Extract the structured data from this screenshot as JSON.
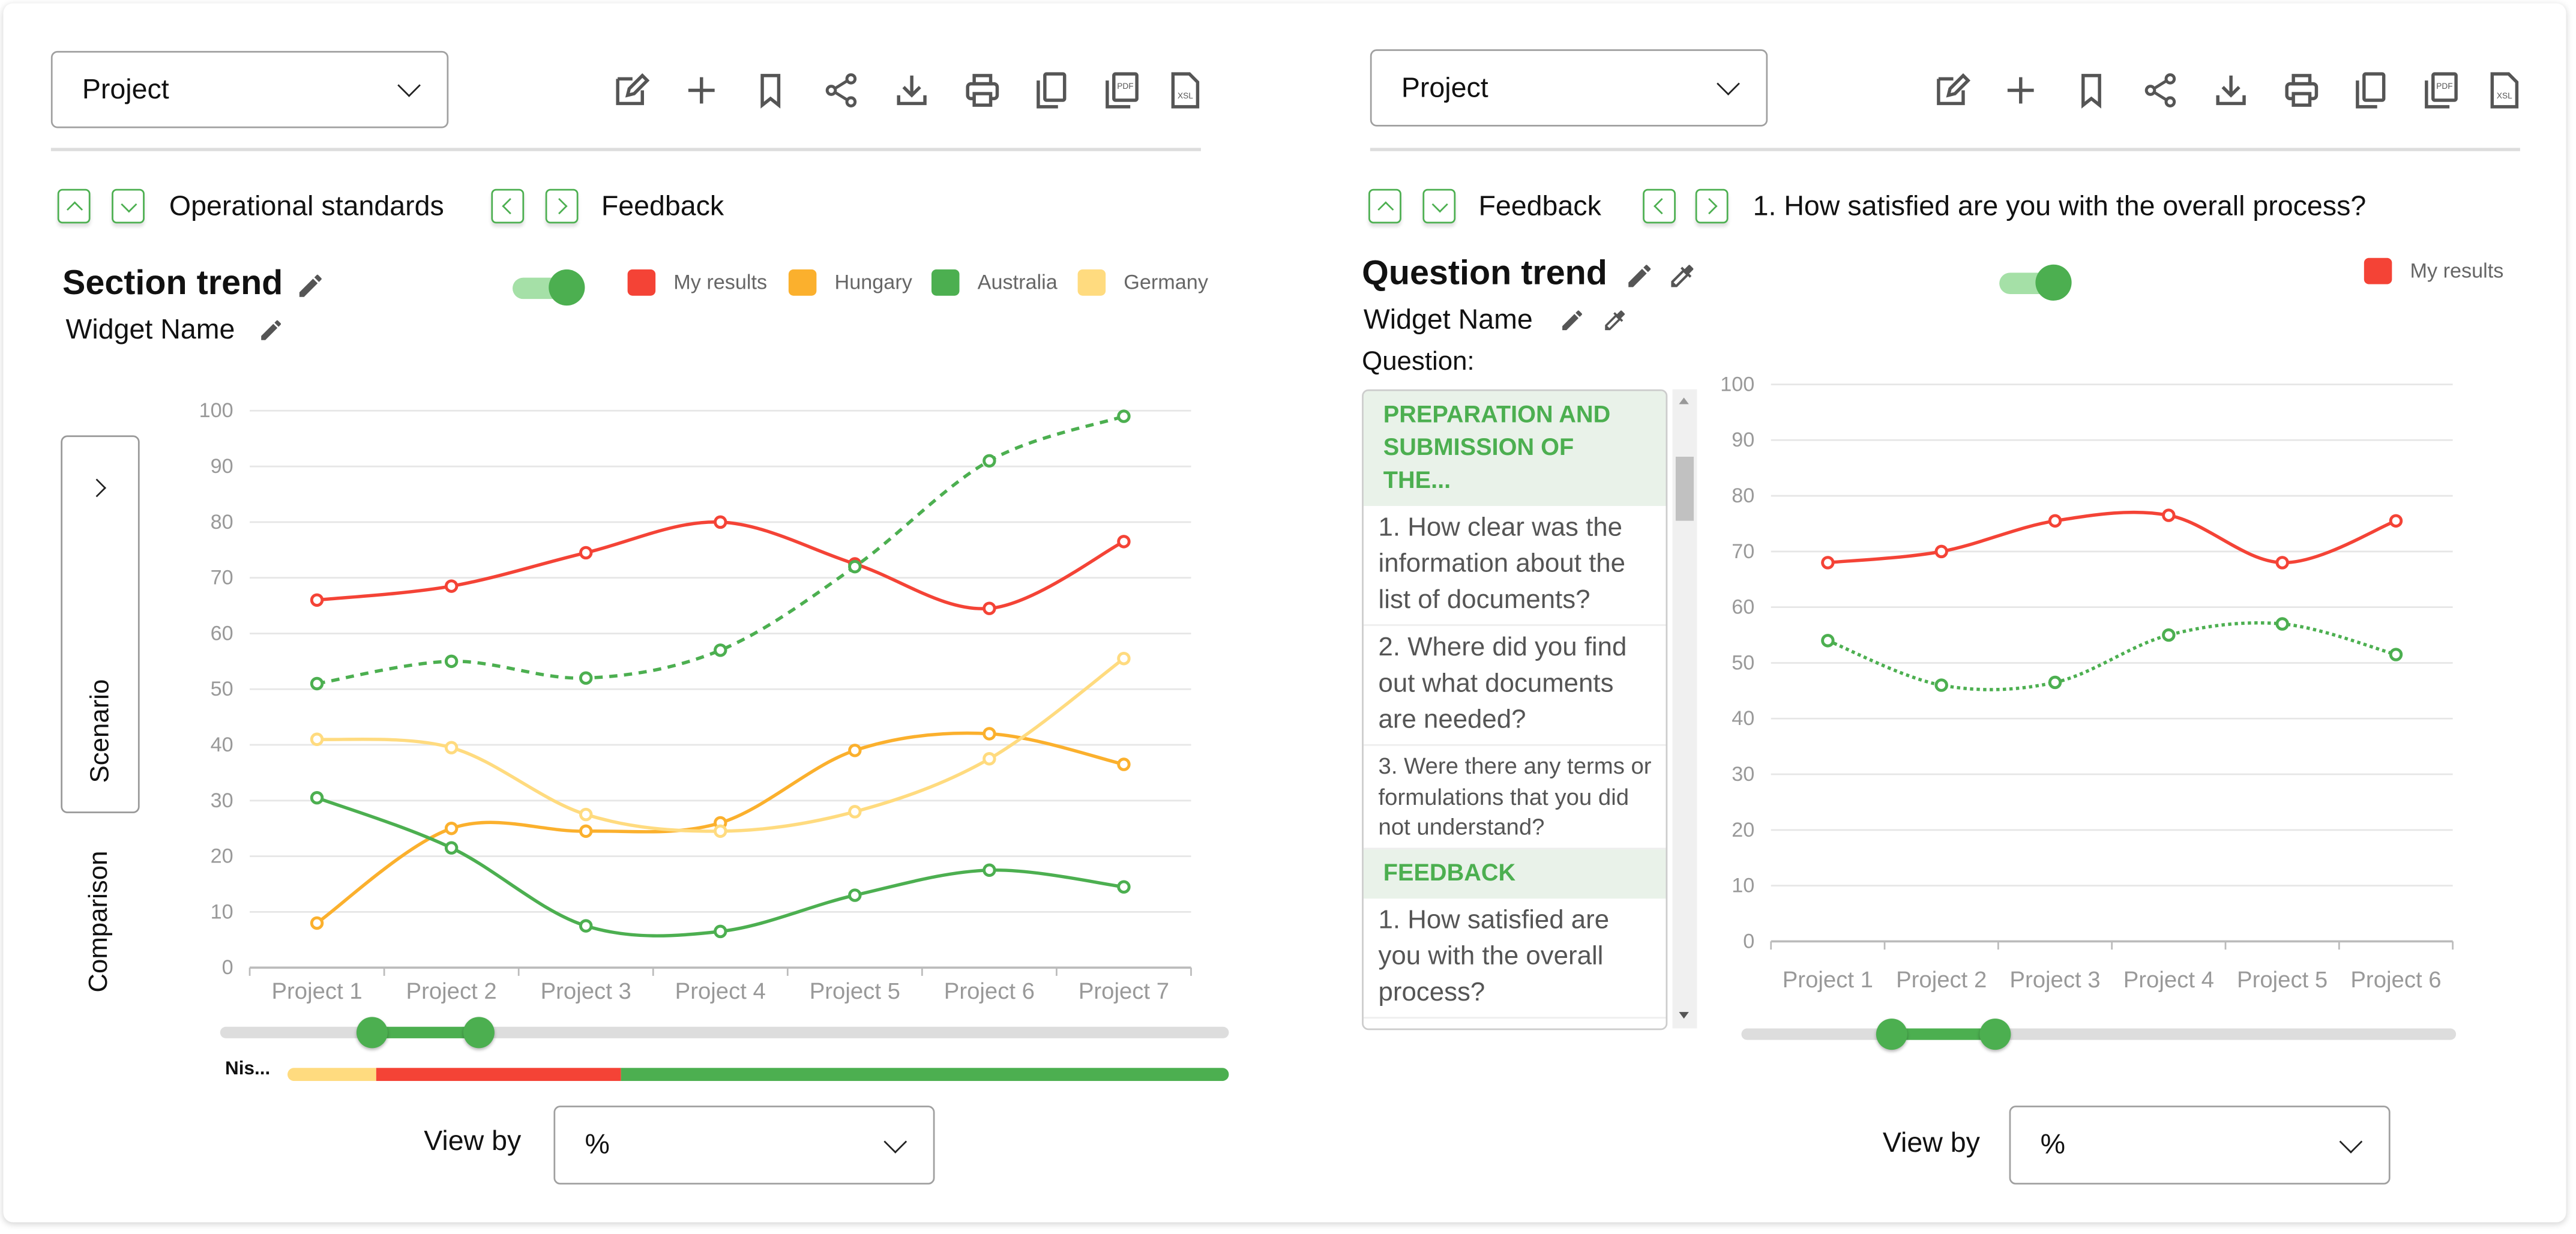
{
  "colors": {
    "accent": "#4caf50",
    "red": "#f44336",
    "orange": "#fbb02d",
    "green": "#4caf50",
    "yellow": "#ffdb7f"
  },
  "toolbar_icons": [
    "edit-icon",
    "plus-icon",
    "bookmark-icon",
    "share-icon",
    "download-icon",
    "print-icon",
    "copy-icon",
    "pdf-icon",
    "xsl-icon"
  ],
  "left": {
    "project_dropdown": "Project",
    "nav": {
      "section": "Operational standards",
      "question": "Feedback"
    },
    "title": "Section trend",
    "widget_name": "Widget Name",
    "toggle_on": true,
    "side_tabs": {
      "scenario": "Scenario",
      "comparison": "Comparison"
    },
    "range": {
      "from": 0.15,
      "to": 0.255
    },
    "distribution": {
      "label": "Nis...",
      "segments": [
        {
          "color": "#ffdb7f",
          "share": 0.095
        },
        {
          "color": "#f44336",
          "share": 0.26
        },
        {
          "color": "#4caf50",
          "share": 0.645
        }
      ]
    },
    "view_by_label": "View by",
    "view_by_value": "%"
  },
  "right": {
    "project_dropdown": "Project",
    "nav": {
      "section": "Feedback",
      "question": "1. How satisfied are you with the overall process?"
    },
    "title": "Question trend",
    "widget_name": "Widget Name",
    "question_label": "Question:",
    "toggle_on": true,
    "questions": [
      {
        "type": "section",
        "text": "PREPARATION AND SUBMISSION OF THE..."
      },
      {
        "type": "item",
        "text": "1. How clear was the information about the list of documents?"
      },
      {
        "type": "item",
        "text": "2. Where did you find out what documents are needed?"
      },
      {
        "type": "item-small",
        "text": "3. Were there any terms or formulations that you did not understand?"
      },
      {
        "type": "section",
        "text": "FEEDBACK"
      },
      {
        "type": "item",
        "text": "1. How satisfied are you with the overall process?"
      }
    ],
    "range": {
      "from": 0.21,
      "to": 0.355
    },
    "view_by_label": "View by",
    "view_by_value": "%"
  },
  "chart_data": [
    {
      "type": "line",
      "title": "Section trend",
      "ylim": [
        0,
        100
      ],
      "yticks": [
        0,
        10,
        20,
        30,
        40,
        50,
        60,
        70,
        80,
        90,
        100
      ],
      "grid": true,
      "legend": "top-right",
      "categories": [
        "Project 1",
        "Project 2",
        "Project 3",
        "Project 4",
        "Project 5",
        "Project 6",
        "Project 7"
      ],
      "series": [
        {
          "name": "My results",
          "color": "#f44336",
          "dashed": false,
          "values": [
            66,
            68.5,
            74.5,
            80,
            72.5,
            64.5,
            76.5
          ],
          "legend": true
        },
        {
          "name": "Hungary",
          "color": "#fbb02d",
          "dashed": false,
          "values": [
            8,
            25,
            24.5,
            26,
            39,
            42,
            36.5
          ],
          "legend": true
        },
        {
          "name": "Australia",
          "color": "#4caf50",
          "dashed": false,
          "values": [
            30.5,
            21.5,
            7.5,
            6.5,
            13,
            17.5,
            14.5
          ],
          "legend": true
        },
        {
          "name": "Germany",
          "color": "#ffdb7f",
          "dashed": false,
          "values": [
            41,
            39.5,
            27.5,
            24.5,
            28,
            37.5,
            55.5
          ],
          "legend": true
        },
        {
          "name": "Australia",
          "color": "#4caf50",
          "dashed": "dash",
          "values": [
            51,
            55,
            52,
            57,
            72,
            91,
            99
          ],
          "legend": false
        }
      ]
    },
    {
      "type": "line",
      "title": "Question trend",
      "ylim": [
        0,
        100
      ],
      "yticks": [
        0,
        10,
        20,
        30,
        40,
        50,
        60,
        70,
        80,
        90,
        100
      ],
      "grid": true,
      "legend": "top-right",
      "categories": [
        "Project 1",
        "Project 2",
        "Project 3",
        "Project 4",
        "Project 5",
        "Project 6"
      ],
      "series": [
        {
          "name": "My results",
          "color": "#f44336",
          "dashed": false,
          "values": [
            68,
            70,
            75.5,
            76.5,
            68,
            75.5
          ],
          "legend": true
        },
        {
          "name": "My results",
          "color": "#4caf50",
          "dashed": "dot",
          "values": [
            54,
            46,
            46.5,
            55,
            57,
            51.5
          ],
          "legend": false
        }
      ]
    }
  ]
}
